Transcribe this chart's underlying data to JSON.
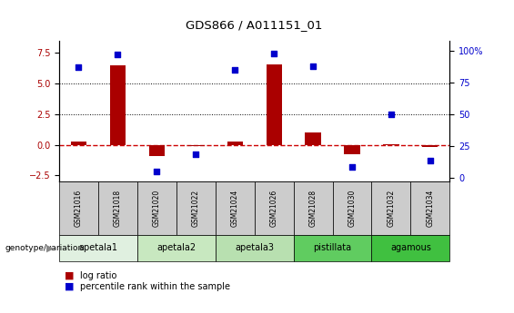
{
  "title": "GDS866 / A011151_01",
  "samples": [
    "GSM21016",
    "GSM21018",
    "GSM21020",
    "GSM21022",
    "GSM21024",
    "GSM21026",
    "GSM21028",
    "GSM21030",
    "GSM21032",
    "GSM21034"
  ],
  "log_ratio": [
    0.3,
    6.5,
    -0.9,
    -0.1,
    0.3,
    6.6,
    1.0,
    -0.75,
    0.05,
    -0.2
  ],
  "percentile_rank": [
    87,
    97,
    5,
    18,
    85,
    98,
    88,
    8,
    50,
    13
  ],
  "groups": [
    {
      "label": "apetala1",
      "start": 0,
      "end": 2,
      "color": "#e0f0e0"
    },
    {
      "label": "apetala2",
      "start": 2,
      "end": 4,
      "color": "#c8e8c0"
    },
    {
      "label": "apetala3",
      "start": 4,
      "end": 6,
      "color": "#b8e0b0"
    },
    {
      "label": "pistillata",
      "start": 6,
      "end": 8,
      "color": "#60cc60"
    },
    {
      "label": "agamous",
      "start": 8,
      "end": 10,
      "color": "#40c040"
    }
  ],
  "ylim_left": [
    -3.0,
    8.5
  ],
  "ylim_right": [
    -3.24,
    108
  ],
  "yticks_left": [
    -2.5,
    0.0,
    2.5,
    5.0,
    7.5
  ],
  "yticks_right": [
    0,
    25,
    50,
    75,
    100
  ],
  "bar_color": "#aa0000",
  "dot_color": "#0000cc",
  "zero_line_color": "#cc0000",
  "sample_box_color": "#cccccc",
  "background_color": "#ffffff",
  "legend_bar_label": "log ratio",
  "legend_dot_label": "percentile rank within the sample",
  "genotype_label": "genotype/variation"
}
